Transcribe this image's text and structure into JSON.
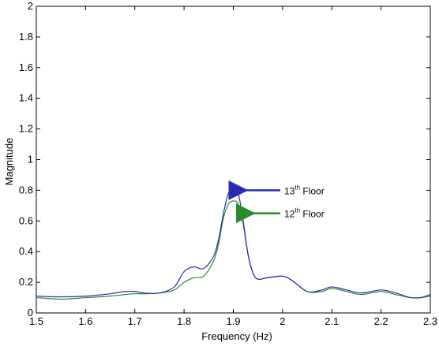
{
  "chart_data": {
    "type": "line",
    "title": "",
    "xlabel": "Frequency (Hz)",
    "ylabel": "Magnitude",
    "xlim": [
      1.5,
      2.3
    ],
    "ylim": [
      0,
      2
    ],
    "xticks": [
      1.5,
      1.6,
      1.7,
      1.8,
      1.9,
      2,
      2.1,
      2.2,
      2.3
    ],
    "xtick_labels": [
      "1.5",
      "1.6",
      "1.7",
      "1.8",
      "1.9",
      "2",
      "2.1",
      "2.2",
      "2.3"
    ],
    "yticks": [
      0,
      0.2,
      0.4,
      0.6,
      0.8,
      1,
      1.2,
      1.4,
      1.6,
      1.8,
      2
    ],
    "ytick_labels": [
      "0",
      "0.2",
      "0.4",
      "0.6",
      "0.8",
      "1",
      "1.2",
      "1.4",
      "1.6",
      "1.8",
      "2"
    ],
    "grid": false,
    "series": [
      {
        "name": "13th Floor",
        "color": "#2b2bb0",
        "x": [
          1.5,
          1.55,
          1.6,
          1.65,
          1.68,
          1.7,
          1.72,
          1.75,
          1.78,
          1.8,
          1.82,
          1.84,
          1.86,
          1.87,
          1.88,
          1.89,
          1.9,
          1.91,
          1.92,
          1.93,
          1.94,
          1.95,
          1.97,
          2.0,
          2.02,
          2.05,
          2.08,
          2.1,
          2.13,
          2.16,
          2.2,
          2.23,
          2.26,
          2.28,
          2.3
        ],
        "values": [
          0.11,
          0.105,
          0.11,
          0.125,
          0.14,
          0.14,
          0.13,
          0.13,
          0.17,
          0.27,
          0.3,
          0.29,
          0.37,
          0.48,
          0.65,
          0.78,
          0.81,
          0.78,
          0.6,
          0.38,
          0.26,
          0.22,
          0.23,
          0.24,
          0.21,
          0.14,
          0.15,
          0.17,
          0.15,
          0.13,
          0.15,
          0.13,
          0.1,
          0.1,
          0.12
        ]
      },
      {
        "name": "12th Floor",
        "color": "#2a8a2a",
        "x": [
          1.5,
          1.55,
          1.6,
          1.65,
          1.68,
          1.7,
          1.72,
          1.75,
          1.78,
          1.8,
          1.82,
          1.84,
          1.86,
          1.87,
          1.88,
          1.89,
          1.9,
          1.91,
          1.92,
          1.93,
          1.94,
          1.95,
          1.97,
          2.0,
          2.02,
          2.05,
          2.08,
          2.1,
          2.13,
          2.16,
          2.2,
          2.23,
          2.26,
          2.28,
          2.3
        ],
        "values": [
          0.1,
          0.09,
          0.1,
          0.11,
          0.12,
          0.125,
          0.125,
          0.13,
          0.15,
          0.2,
          0.23,
          0.24,
          0.34,
          0.45,
          0.62,
          0.71,
          0.73,
          0.71,
          0.58,
          0.38,
          0.26,
          0.22,
          0.23,
          0.24,
          0.21,
          0.14,
          0.14,
          0.16,
          0.14,
          0.12,
          0.14,
          0.12,
          0.1,
          0.1,
          0.11
        ]
      }
    ],
    "annotations": [
      {
        "text": "13",
        "sup": "th",
        "rest": " Floor",
        "arrow_x": 1.9,
        "arrow_y": 0.8,
        "color": "#2b2bb0"
      },
      {
        "text": "12",
        "sup": "th",
        "rest": " Floor",
        "arrow_x": 1.915,
        "arrow_y": 0.65,
        "color": "#2a8a2a"
      }
    ]
  }
}
